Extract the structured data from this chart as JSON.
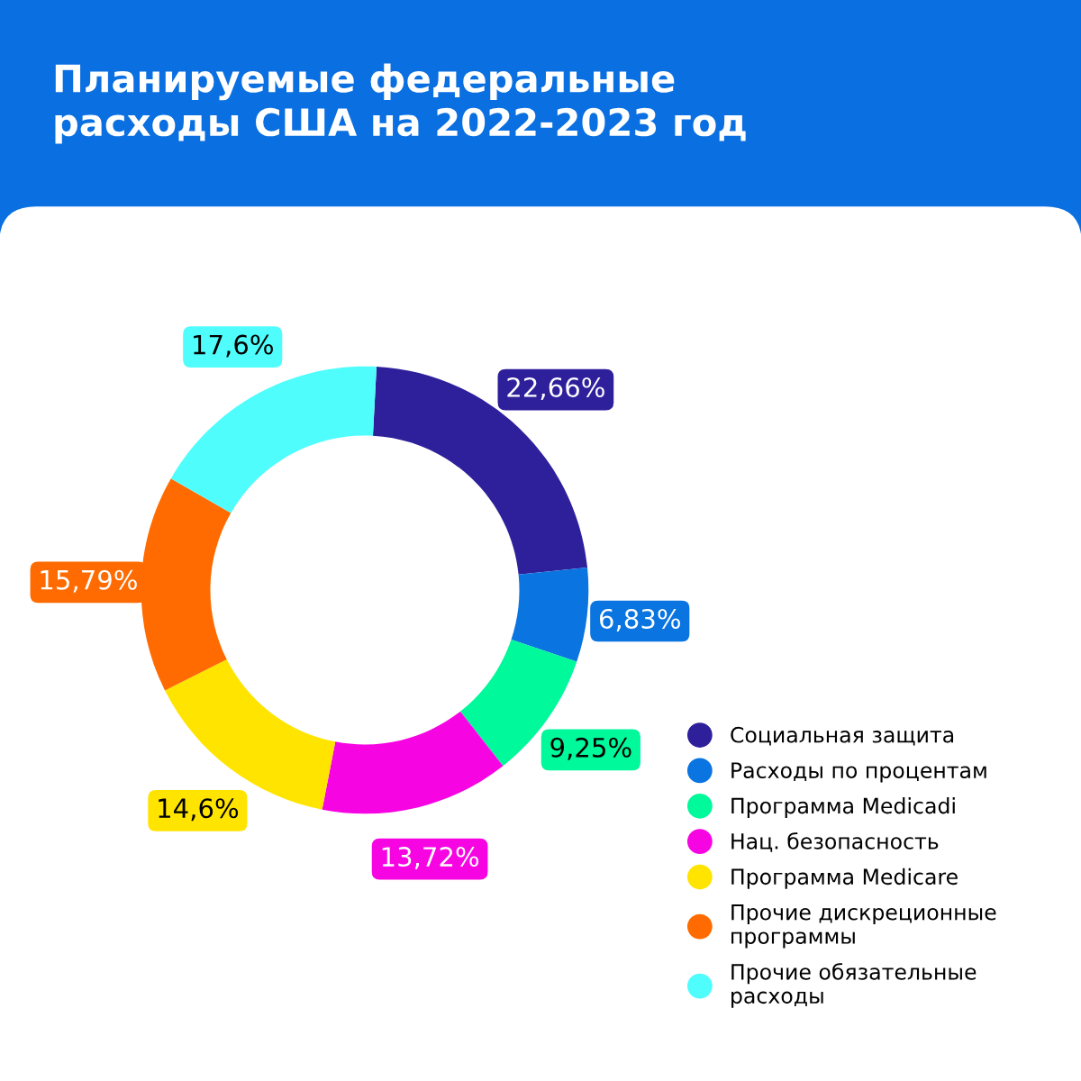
{
  "chart_data": {
    "type": "donut",
    "title": "Планируемые федеральные\nрасходы США на 2022-2023 год",
    "categories": [
      "Социальная защита",
      "Расходы по процентам",
      "Программа Medicadi",
      "Нац. безопасность",
      "Программа Medicare",
      "Прочие дискреционные\nпрограммы",
      "Прочие обязательные\nрасходы"
    ],
    "values": [
      22.66,
      6.83,
      9.25,
      13.72,
      14.6,
      15.79,
      17.6
    ],
    "value_labels": [
      "22,66%",
      "6,83%",
      "9,25%",
      "13,72%",
      "14,6%",
      "15,79%",
      "17,6%"
    ],
    "colors": [
      "#2e209b",
      "#0a74e0",
      "#00f99a",
      "#f704e2",
      "#ffe400",
      "#ff6b00",
      "#4ffdfd"
    ],
    "legend": "bottom right"
  }
}
